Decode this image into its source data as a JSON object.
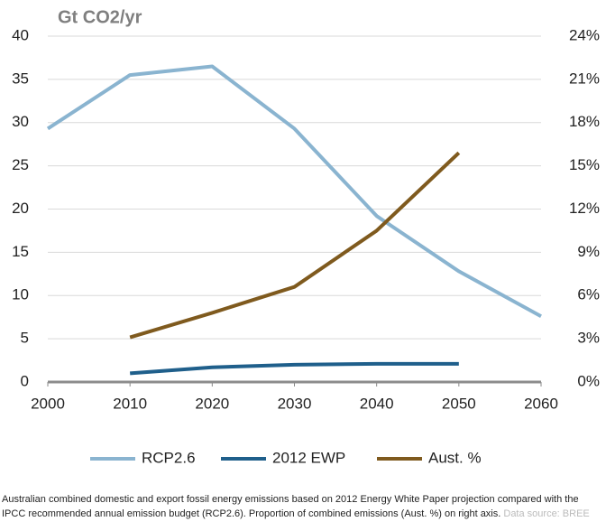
{
  "chart_data": {
    "type": "line",
    "title": "Gt CO2/yr",
    "x": [
      2000,
      2010,
      2020,
      2030,
      2040,
      2050,
      2060
    ],
    "series": [
      {
        "name": "RCP2.6",
        "color": "#8ab4d0",
        "values": [
          29.3,
          35.5,
          36.5,
          29.3,
          19.2,
          12.8,
          7.6
        ]
      },
      {
        "name": "2012 EWP",
        "color": "#1f5f8b",
        "values": [
          null,
          1.0,
          1.7,
          2.0,
          2.1,
          2.1,
          null
        ]
      },
      {
        "name": "Aust. %",
        "color": "#7f5a1e",
        "axis": "y2",
        "values": [
          null,
          3.1,
          4.8,
          6.6,
          10.5,
          15.9,
          null
        ]
      }
    ],
    "xlim": [
      2000,
      2060
    ],
    "xticks": [
      2000,
      2010,
      2020,
      2030,
      2040,
      2050,
      2060
    ],
    "ylim": [
      0,
      40
    ],
    "yticks": [
      0,
      5,
      10,
      15,
      20,
      25,
      30,
      35,
      40
    ],
    "y2lim": [
      0,
      24
    ],
    "y2ticks": [
      {
        "value": 0,
        "label": "0%"
      },
      {
        "value": 3,
        "label": "3%"
      },
      {
        "value": 6,
        "label": "6%"
      },
      {
        "value": 9,
        "label": "9%"
      },
      {
        "value": 12,
        "label": "12%"
      },
      {
        "value": 15,
        "label": "15%"
      },
      {
        "value": 18,
        "label": "18%"
      },
      {
        "value": 21,
        "label": "21%"
      },
      {
        "value": 24,
        "label": "24%"
      }
    ],
    "grid": true,
    "legend": "bottom",
    "caption": "Australian combined domestic and export fossil energy emissions based on 2012 Energy White Paper projection compared with the IPCC recommended annual emission budget (RCP2.6). Proportion of combined emissions (Aust. %) on right axis.",
    "source": "Data source: BREE"
  }
}
